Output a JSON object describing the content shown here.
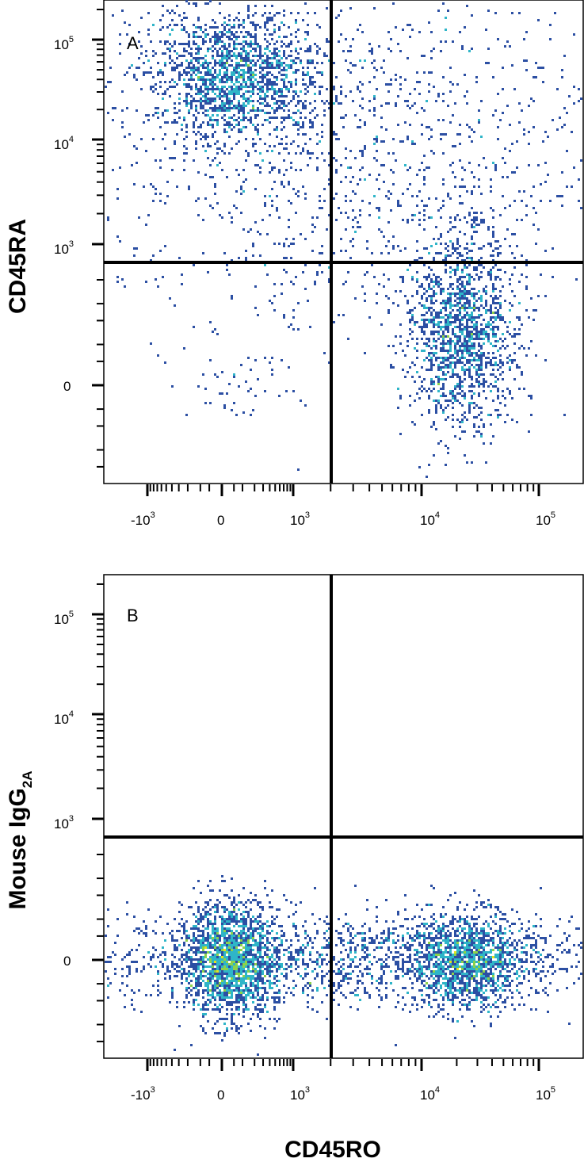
{
  "chart_data": [
    {
      "type": "scatter",
      "panel_label": "A",
      "ylabel": "CD45RA",
      "ylabel_sub": "",
      "xlabel": "",
      "x_scale": "biexponential",
      "y_scale": "biexponential",
      "x_ticks": [
        {
          "value": -1000,
          "base": "-10",
          "exp": "3"
        },
        {
          "value": 0,
          "base": "0",
          "exp": ""
        },
        {
          "value": 1000,
          "base": "10",
          "exp": "3"
        },
        {
          "value": 10000,
          "base": "10",
          "exp": "4"
        },
        {
          "value": 100000,
          "base": "10",
          "exp": "5"
        }
      ],
      "y_ticks": [
        {
          "value": 0,
          "base": "0",
          "exp": ""
        },
        {
          "value": 1000,
          "base": "10",
          "exp": "3"
        },
        {
          "value": 10000,
          "base": "10",
          "exp": "4"
        },
        {
          "value": 100000,
          "base": "10",
          "exp": "5"
        }
      ],
      "quadrant_gate": {
        "x": 1800,
        "y": 700
      },
      "grid": false,
      "populations": [
        {
          "name": "",
          "x_center": 50,
          "y_center": 45000,
          "x_spread": 0.09,
          "y_spread": 0.07,
          "count": 1700,
          "peak_color": "#e8161b"
        },
        {
          "name": "",
          "x_center": 3000,
          "y_center": 7000,
          "x_spread": 0.28,
          "y_spread": 0.2,
          "count": 1300,
          "peak_color": "#2f9fd0"
        },
        {
          "name": "",
          "x_center": 22000,
          "y_center": 150,
          "x_spread": 0.06,
          "y_spread": 0.1,
          "count": 1500,
          "peak_color": "#d8de1e"
        },
        {
          "name": "",
          "x_center": 60,
          "y_center": 0,
          "x_spread": 0.05,
          "y_spread": 0.04,
          "count": 40,
          "peak_color": "#2c4fa3"
        }
      ]
    },
    {
      "type": "scatter",
      "panel_label": "B",
      "ylabel": "Mouse IgG",
      "ylabel_sub": "2A",
      "xlabel": "CD45RO",
      "x_scale": "biexponential",
      "y_scale": "biexponential",
      "x_ticks": [
        {
          "value": -1000,
          "base": "-10",
          "exp": "3"
        },
        {
          "value": 0,
          "base": "0",
          "exp": ""
        },
        {
          "value": 1000,
          "base": "10",
          "exp": "3"
        },
        {
          "value": 10000,
          "base": "10",
          "exp": "4"
        },
        {
          "value": 100000,
          "base": "10",
          "exp": "5"
        }
      ],
      "y_ticks": [
        {
          "value": 0,
          "base": "0",
          "exp": ""
        },
        {
          "value": 1000,
          "base": "10",
          "exp": "3"
        },
        {
          "value": 10000,
          "base": "10",
          "exp": "4"
        },
        {
          "value": 100000,
          "base": "10",
          "exp": "5"
        }
      ],
      "quadrant_gate": {
        "x": 1800,
        "y": 700
      },
      "grid": false,
      "populations": [
        {
          "name": "",
          "x_center": 30,
          "y_center": 0,
          "x_spread": 0.05,
          "y_spread": 0.06,
          "count": 1800,
          "peak_color": "#e8161b"
        },
        {
          "name": "",
          "x_center": 2500,
          "y_center": 0,
          "x_spread": 0.3,
          "y_spread": 0.05,
          "count": 1600,
          "peak_color": "#2f9fd0"
        },
        {
          "name": "",
          "x_center": 25000,
          "y_center": 0,
          "x_spread": 0.06,
          "y_spread": 0.05,
          "count": 1300,
          "peak_color": "#d8de1e"
        }
      ]
    }
  ],
  "colors": {
    "density_low": "#2c4fa3",
    "density_mid": "#2fb5c8",
    "density_midhigh": "#8dd24a",
    "density_high": "#e6e21c",
    "density_peak": "#e8161b",
    "gate_line": "#000000"
  }
}
